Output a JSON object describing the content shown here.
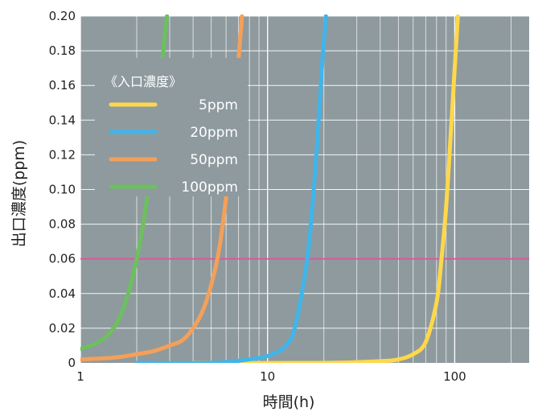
{
  "chart_data": {
    "type": "line",
    "xlabel": "時間(h)",
    "ylabel": "出口濃度(ppm)",
    "x_scale": "log",
    "xlim": [
      1,
      250
    ],
    "ylim": [
      0,
      0.2
    ],
    "x_ticks": [
      {
        "value": 1,
        "label": "1"
      },
      {
        "value": 10,
        "label": "10"
      },
      {
        "value": 100,
        "label": "100"
      }
    ],
    "y_ticks": [
      {
        "value": 0,
        "label": "0"
      },
      {
        "value": 0.02,
        "label": "0.02"
      },
      {
        "value": 0.04,
        "label": "0.04"
      },
      {
        "value": 0.06,
        "label": "0.06"
      },
      {
        "value": 0.08,
        "label": "0.08"
      },
      {
        "value": 0.1,
        "label": "0.10"
      },
      {
        "value": 0.12,
        "label": "0.12"
      },
      {
        "value": 0.14,
        "label": "0.14"
      },
      {
        "value": 0.16,
        "label": "0.16"
      },
      {
        "value": 0.18,
        "label": "0.18"
      },
      {
        "value": 0.2,
        "label": "0.20"
      }
    ],
    "grid": true,
    "background_color": "#8e9a9e",
    "reference_line": {
      "y": 0.06,
      "color": "#e0559a"
    },
    "legend": {
      "title": "《入口濃度》",
      "position": "top-left"
    },
    "series": [
      {
        "name": "5ppm",
        "color": "#ffd84a",
        "points": [
          [
            4,
            0.0
          ],
          [
            20,
            0.0
          ],
          [
            40,
            0.001
          ],
          [
            50,
            0.002
          ],
          [
            60,
            0.005
          ],
          [
            70,
            0.012
          ],
          [
            80,
            0.035
          ],
          [
            85,
            0.06
          ],
          [
            90,
            0.09
          ],
          [
            95,
            0.13
          ],
          [
            100,
            0.17
          ],
          [
            104,
            0.2
          ]
        ]
      },
      {
        "name": "20ppm",
        "color": "#3fb5ea",
        "points": [
          [
            2,
            0.0
          ],
          [
            5,
            0.0
          ],
          [
            8,
            0.002
          ],
          [
            10,
            0.004
          ],
          [
            12,
            0.008
          ],
          [
            13.5,
            0.015
          ],
          [
            14.5,
            0.028
          ],
          [
            15.5,
            0.045
          ],
          [
            16.5,
            0.065
          ],
          [
            17.5,
            0.095
          ],
          [
            18.5,
            0.13
          ],
          [
            19.5,
            0.17
          ],
          [
            20.5,
            0.2
          ]
        ]
      },
      {
        "name": "50ppm",
        "color": "#f4a05a",
        "points": [
          [
            1,
            0.002
          ],
          [
            1.5,
            0.003
          ],
          [
            2,
            0.005
          ],
          [
            2.5,
            0.007
          ],
          [
            3,
            0.01
          ],
          [
            3.5,
            0.013
          ],
          [
            4,
            0.02
          ],
          [
            4.5,
            0.03
          ],
          [
            5,
            0.045
          ],
          [
            5.5,
            0.065
          ],
          [
            6,
            0.095
          ],
          [
            6.5,
            0.13
          ],
          [
            7,
            0.175
          ],
          [
            7.3,
            0.2
          ]
        ]
      },
      {
        "name": "100ppm",
        "color": "#6cc05e",
        "points": [
          [
            1,
            0.008
          ],
          [
            1.2,
            0.011
          ],
          [
            1.4,
            0.016
          ],
          [
            1.6,
            0.025
          ],
          [
            1.8,
            0.04
          ],
          [
            2.0,
            0.06
          ],
          [
            2.2,
            0.085
          ],
          [
            2.4,
            0.115
          ],
          [
            2.6,
            0.15
          ],
          [
            2.8,
            0.185
          ],
          [
            2.9,
            0.2
          ]
        ]
      }
    ]
  }
}
